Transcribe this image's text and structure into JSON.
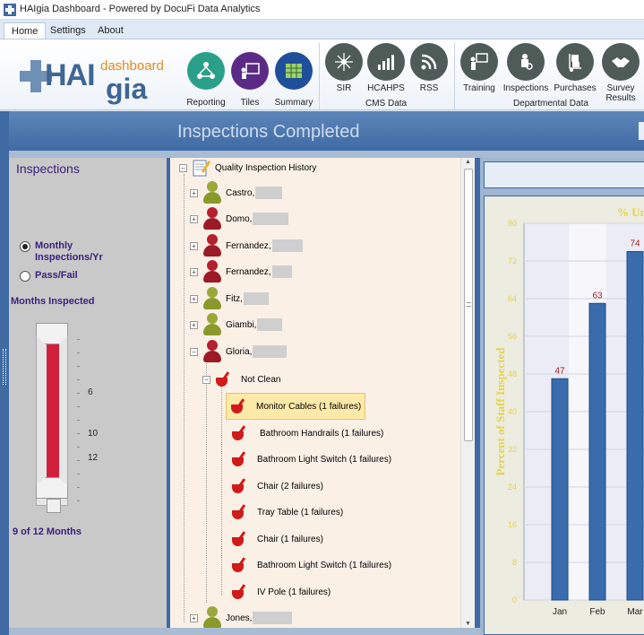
{
  "window": {
    "title": "HAIgia Dashboard - Powered by DocuFi Data Analytics"
  },
  "ribbon": {
    "tabs": [
      {
        "label": "Home",
        "active": true
      },
      {
        "label": "Settings",
        "active": false
      },
      {
        "label": "About",
        "active": false
      }
    ],
    "logo": {
      "cross_text": "HAI",
      "gia_text": "gia",
      "dashboard_text": "dashboard"
    },
    "buttons": [
      {
        "label": "Reporting",
        "icon": "people-network-icon",
        "color": "#2aa08a"
      },
      {
        "label": "Tiles",
        "icon": "presenter-board-icon",
        "color": "#5b2a86"
      },
      {
        "label": "Summary",
        "icon": "spreadsheet-icon",
        "color": "#1f4f9a"
      },
      {
        "label": "SIR",
        "icon": "hub-network-icon",
        "color": "#4f5b57"
      },
      {
        "label": "HCAHPS",
        "icon": "bar-growth-icon",
        "color": "#4f5b57"
      },
      {
        "label": "RSS",
        "icon": "rss-icon",
        "color": "#4f5b57"
      },
      {
        "label": "Training",
        "icon": "teacher-board-icon",
        "color": "#4f5b57"
      },
      {
        "label": "Inspections",
        "icon": "inspector-icon",
        "color": "#4f5b57"
      },
      {
        "label": "Purchases",
        "icon": "hand-truck-icon",
        "color": "#4f5b57"
      },
      {
        "label": "Survey\nResults",
        "icon": "handshake-icon",
        "color": "#4f5b57"
      }
    ],
    "groups": {
      "cms": "CMS Data",
      "departmental": "Departmental Data"
    }
  },
  "banner": {
    "title": "Inspections Completed"
  },
  "left_panel": {
    "heading": "Inspections",
    "options": [
      {
        "label": "Monthly\nInspections/Yr",
        "selected": true
      },
      {
        "label": "Pass/Fail",
        "selected": false
      }
    ],
    "months_title": "Months Inspected",
    "slider_labels": {
      "a": "6",
      "b": "10",
      "c": "12"
    },
    "slider_value": 0.75,
    "status": "9 of 12 Months"
  },
  "tree": {
    "root_label": "Quality Inspection History",
    "people": [
      {
        "name": "Castro,",
        "status": "pass"
      },
      {
        "name": "Domo,",
        "status": "fail"
      },
      {
        "name": "Fernandez,",
        "status": "fail"
      },
      {
        "name": "Fernandez,",
        "status": "fail"
      },
      {
        "name": "Fitz,",
        "status": "pass"
      },
      {
        "name": "Giambi,",
        "status": "pass"
      },
      {
        "name": "Gloria,",
        "status": "fail"
      }
    ],
    "not_clean_label": "Not Clean",
    "failures": [
      "Monitor Cables (1 failures)",
      "Bathroom Handrails (1 failures)",
      "Bathroom Light Switch (1 failures)",
      "Chair (2 failures)",
      "Tray Table (1 failures)",
      "Chair (1 failures)",
      "Bathroom Light Switch (1 failures)",
      "IV Pole (1 failures)"
    ],
    "last_person": "Jones,"
  },
  "chart_data": {
    "type": "bar",
    "title": "% Uni",
    "ylabel": "Percent of Staff Inspected",
    "categories": [
      "Jan",
      "Feb",
      "Mar"
    ],
    "values": [
      47,
      63,
      74
    ],
    "ylim": [
      0,
      80
    ],
    "yticks": [
      "0",
      "8",
      "16",
      "24",
      "32",
      "40",
      "48",
      "56",
      "64",
      "72",
      "80"
    ],
    "grid": true,
    "colors": {
      "bar": "#3a6cad",
      "label": "#a31d1d",
      "axis": "#e6d44a"
    }
  }
}
